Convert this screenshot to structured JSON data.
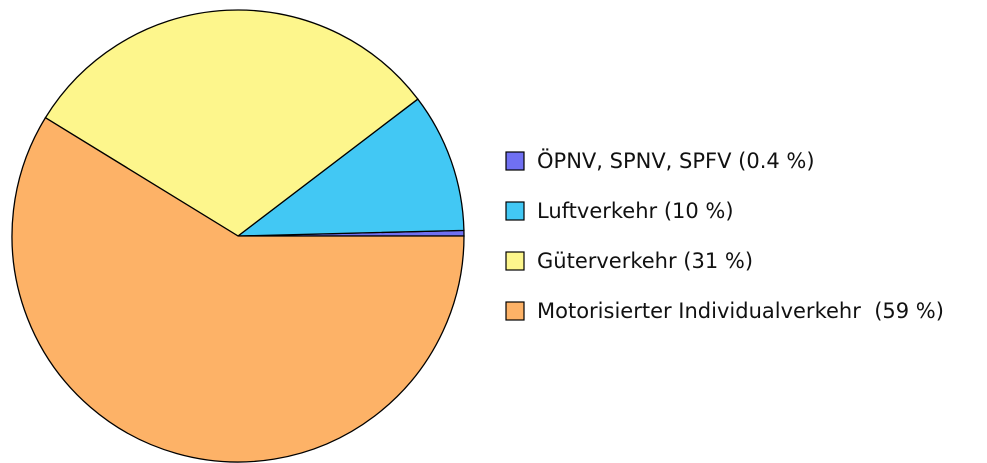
{
  "chart_data": {
    "type": "pie",
    "categories": [
      "ÖPNV, SPNV, SPFV (0.4 %)",
      "Luftverkehr (10 %)",
      "Güterverkehr (31 %)",
      "Motorisierter Individualverkehr  (59 %)"
    ],
    "values": [
      0.4,
      10,
      31,
      59
    ],
    "colors": [
      "#7070f2",
      "#42c8f4",
      "#fdf68c",
      "#fdb267"
    ],
    "legend": "right"
  }
}
